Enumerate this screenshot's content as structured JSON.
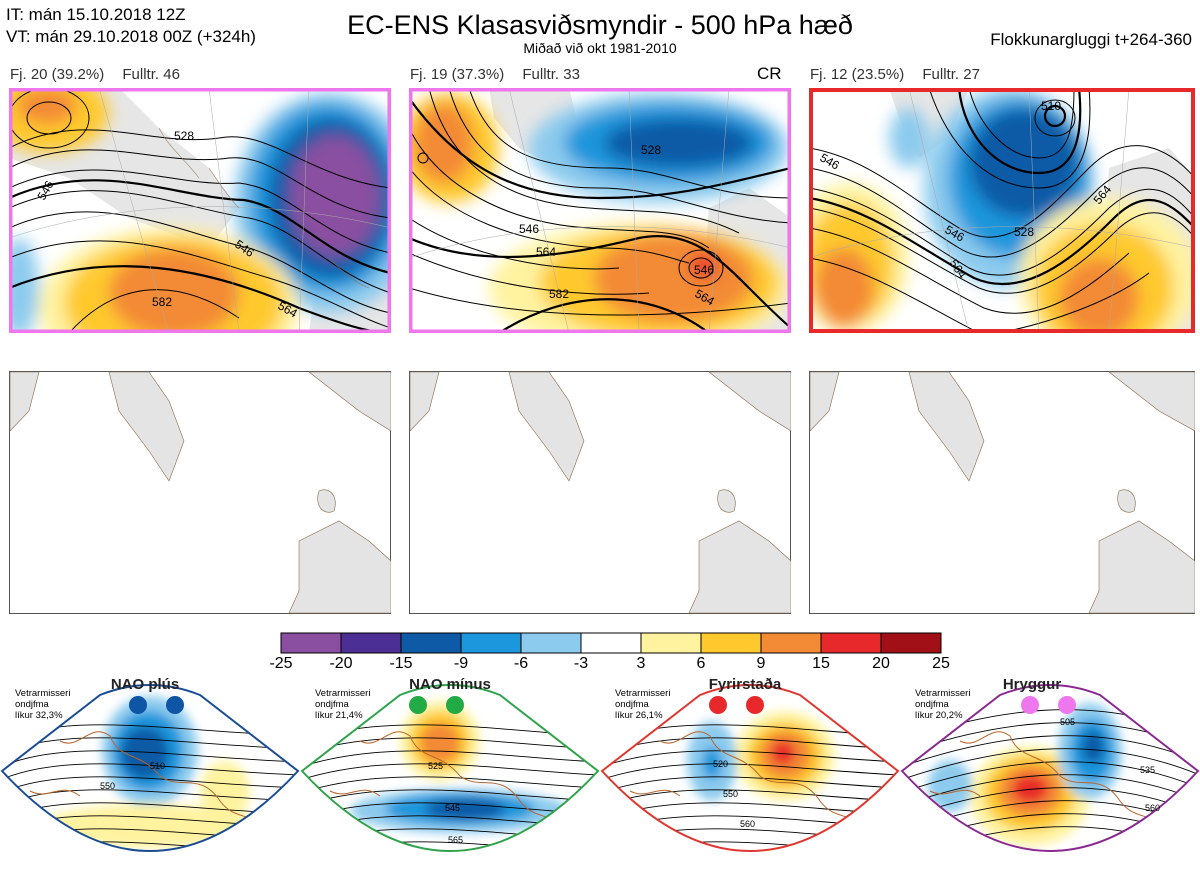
{
  "header": {
    "it": "IT: mán 15.10.2018 12Z",
    "vt": "VT: mán 29.10.2018 00Z  (+324h)",
    "title": "EC-ENS Klasasviðsmyndir - 500 hPa hæð",
    "subtitle": "Miðað við okt 1981-2010",
    "window": "Flokkunargluggi t+264-360"
  },
  "clusters": [
    {
      "label": "Fj. 20 (39.2%)",
      "fulltr": "Fulltr. 46",
      "border": "#ee77ee",
      "contours": [
        "528",
        "546",
        "546",
        "564",
        "582"
      ]
    },
    {
      "label": "Fj. 19 (37.3%)",
      "fulltr": "Fulltr. 33",
      "badge": "CR",
      "border": "#ee77ee",
      "contours": [
        "528",
        "546",
        "564",
        "546",
        "582",
        "564"
      ]
    },
    {
      "label": "Fj. 12 (23.5%)",
      "fulltr": "Fulltr. 27",
      "border": "#e8292b",
      "contours": [
        "510",
        "546",
        "528",
        "546",
        "564",
        "564"
      ]
    }
  ],
  "colorbar": {
    "labels": [
      "-25",
      "-20",
      "-15",
      "-9",
      "-6",
      "-3",
      "3",
      "6",
      "9",
      "15",
      "20",
      "25"
    ],
    "colors": [
      "#8a4fa0",
      "#4b2f94",
      "#0f5aa6",
      "#1c96dc",
      "#8ccbee",
      "#ffffff",
      "#fff3a0",
      "#ffc92e",
      "#f38a35",
      "#e8292b",
      "#a01016"
    ]
  },
  "regimes": [
    {
      "name": "NAO plús",
      "line1": "Vetrarmisseri",
      "line2": "ondjfma",
      "line3": "líkur 32,3%",
      "dot": "#0e55a5",
      "border": "#1a4c96",
      "contours": [
        "510",
        "550"
      ]
    },
    {
      "name": "NAO mínus",
      "line1": "Vetrarmisseri",
      "line2": "ondjfma",
      "line3": "líkur 21,4%",
      "dot": "#22aa44",
      "border": "#2ea34a",
      "contours": [
        "525",
        "545",
        "565"
      ]
    },
    {
      "name": "Fyrirstaða",
      "line1": "Vetrarmisseri",
      "line2": "ondjfma",
      "line3": "líkur 26,1%",
      "dot": "#e8292b",
      "border": "#e0362e",
      "contours": [
        "520",
        "550",
        "560"
      ]
    },
    {
      "name": "Hryggur",
      "line1": "Vetrarmisseri",
      "line2": "ondjfma",
      "line3": "líkur 20,2%",
      "dot": "#ee77ee",
      "border": "#8a2a90",
      "contours": [
        "505",
        "535",
        "560"
      ]
    }
  ]
}
